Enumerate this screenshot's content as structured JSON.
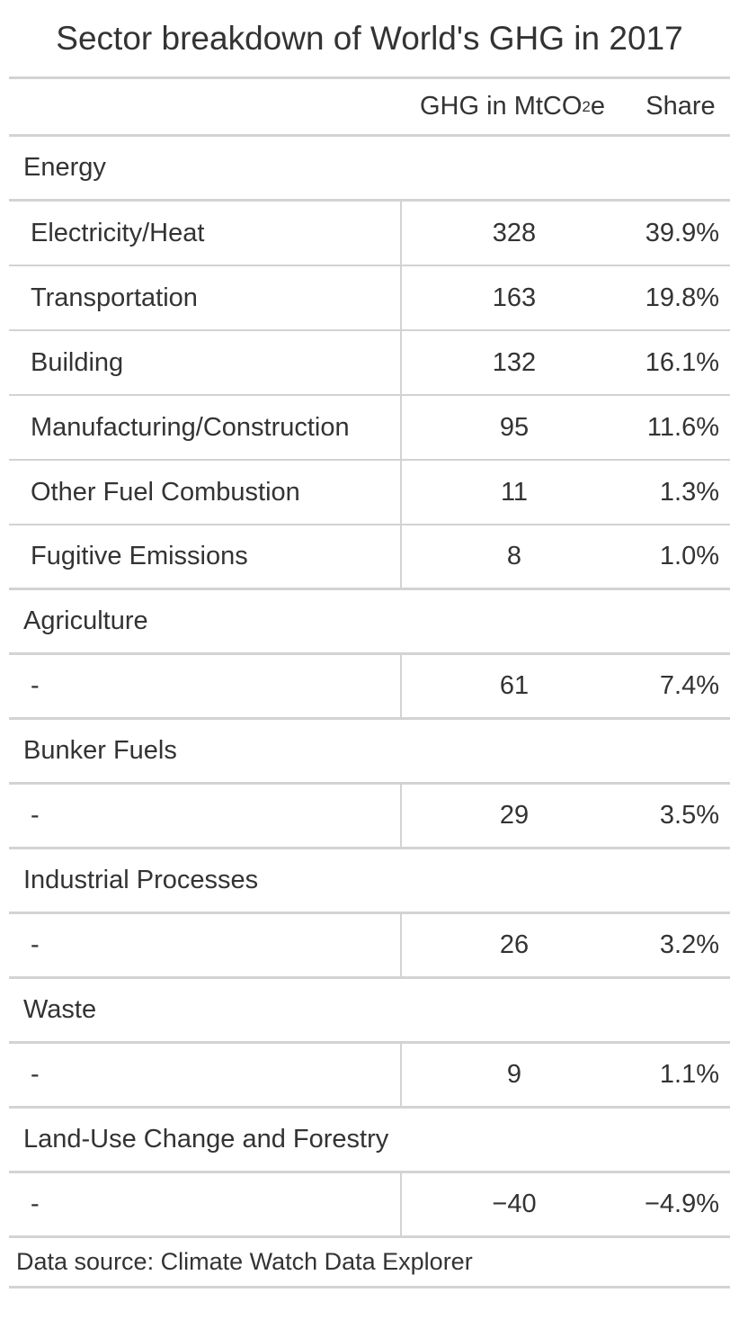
{
  "chart_data": {
    "type": "table",
    "title": "Sector breakdown of World's GHG in 2017",
    "columns": [
      "",
      "GHG in MtCO₂e",
      "Share"
    ],
    "header": {
      "ghg_prefix": "GHG in MtCO",
      "ghg_sub": "2",
      "ghg_suffix": "e",
      "share": "Share"
    },
    "groups": [
      {
        "name": "Energy",
        "rows": [
          {
            "label": "Electricity/Heat",
            "value": 328,
            "value_text": "328",
            "share": "39.9%"
          },
          {
            "label": "Transportation",
            "value": 163,
            "value_text": "163",
            "share": "19.8%"
          },
          {
            "label": "Building",
            "value": 132,
            "value_text": "132",
            "share": "16.1%"
          },
          {
            "label": "Manufacturing/Construction",
            "value": 95,
            "value_text": "95",
            "share": "11.6%"
          },
          {
            "label": "Other Fuel Combustion",
            "value": 11,
            "value_text": "11",
            "share": "1.3%"
          },
          {
            "label": "Fugitive Emissions",
            "value": 8,
            "value_text": "8",
            "share": "1.0%"
          }
        ]
      },
      {
        "name": "Agriculture",
        "rows": [
          {
            "label": "-",
            "value": 61,
            "value_text": "61",
            "share": "7.4%"
          }
        ]
      },
      {
        "name": "Bunker Fuels",
        "rows": [
          {
            "label": "-",
            "value": 29,
            "value_text": "29",
            "share": "3.5%"
          }
        ]
      },
      {
        "name": "Industrial Processes",
        "rows": [
          {
            "label": "-",
            "value": 26,
            "value_text": "26",
            "share": "3.2%"
          }
        ]
      },
      {
        "name": "Waste",
        "rows": [
          {
            "label": "-",
            "value": 9,
            "value_text": "9",
            "share": "1.1%"
          }
        ]
      },
      {
        "name": "Land-Use Change and Forestry",
        "rows": [
          {
            "label": "-",
            "value": -40,
            "value_text": "−40",
            "share": "−4.9%"
          }
        ]
      }
    ],
    "source": "Data source: Climate Watch Data Explorer"
  }
}
